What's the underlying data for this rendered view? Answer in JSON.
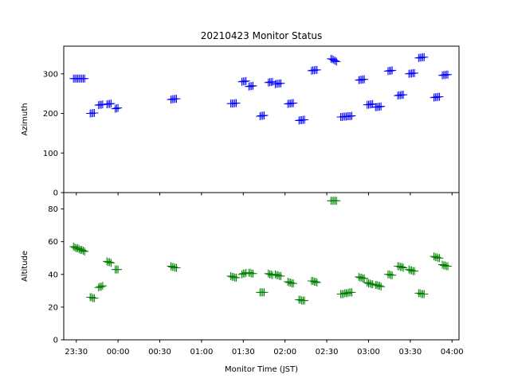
{
  "chart_data": {
    "type": "scatter",
    "title": "20210423 Monitor Status",
    "xlabel": "Monitor Time (JST)",
    "x_ticks": [
      "23:30",
      "00:00",
      "00:30",
      "01:00",
      "01:30",
      "02:00",
      "02:30",
      "03:00",
      "03:30",
      "04:00"
    ],
    "xlim": [
      "23:21",
      "04:05"
    ],
    "marker": "+",
    "panels": [
      {
        "ylabel": "Azimuth",
        "ylim": [
          0,
          370
        ],
        "y_ticks": [
          0,
          100,
          200,
          300
        ],
        "color": "#0000ff",
        "series": [
          {
            "x": [
              "23:28",
              "23:29",
              "23:30",
              "23:31",
              "23:32",
              "23:33",
              "23:34",
              "23:35",
              "23:36"
            ],
            "y": [
              288,
              288,
              288,
              288,
              288,
              288,
              288,
              288,
              288
            ]
          },
          {
            "x": [
              "23:40",
              "23:41",
              "23:42",
              "23:43"
            ],
            "y": [
              200,
              200,
              201,
              201
            ]
          },
          {
            "x": [
              "23:46",
              "23:47",
              "23:48",
              "23:49"
            ],
            "y": [
              221,
              222,
              222,
              223
            ]
          },
          {
            "x": [
              "23:52",
              "23:53",
              "23:54",
              "23:55"
            ],
            "y": [
              223,
              224,
              224,
              225
            ]
          },
          {
            "x": [
              "23:58",
              "23:59",
              "00:00"
            ],
            "y": [
              212,
              213,
              214
            ]
          },
          {
            "x": [
              "00:38",
              "00:39",
              "00:40",
              "00:41",
              "00:42"
            ],
            "y": [
              235,
              236,
              236,
              237,
              237
            ]
          },
          {
            "x": [
              "01:21",
              "01:22",
              "01:23",
              "01:24",
              "01:25"
            ],
            "y": [
              225,
              225,
              225,
              226,
              226
            ]
          },
          {
            "x": [
              "01:29",
              "01:30",
              "01:31",
              "01:32"
            ],
            "y": [
              280,
              281,
              281,
              282
            ]
          },
          {
            "x": [
              "01:34",
              "01:35",
              "01:36",
              "01:37"
            ],
            "y": [
              268,
              269,
              269,
              270
            ]
          },
          {
            "x": [
              "01:42",
              "01:43",
              "01:44",
              "01:45"
            ],
            "y": [
              193,
              194,
              194,
              195
            ]
          },
          {
            "x": [
              "01:48",
              "01:49",
              "01:50",
              "01:51"
            ],
            "y": [
              278,
              279,
              279,
              280
            ]
          },
          {
            "x": [
              "01:53",
              "01:54",
              "01:55",
              "01:56",
              "01:57"
            ],
            "y": [
              274,
              275,
              275,
              276,
              276
            ]
          },
          {
            "x": [
              "02:02",
              "02:03",
              "02:04",
              "02:05",
              "02:06"
            ],
            "y": [
              224,
              225,
              225,
              226,
              226
            ]
          },
          {
            "x": [
              "02:10",
              "02:11",
              "02:12",
              "02:13",
              "02:14"
            ],
            "y": [
              182,
              183,
              183,
              184,
              184
            ]
          },
          {
            "x": [
              "02:19",
              "02:20",
              "02:21",
              "02:22",
              "02:23"
            ],
            "y": [
              308,
              309,
              309,
              310,
              310
            ]
          },
          {
            "x": [
              "02:33",
              "02:34",
              "02:35",
              "02:36",
              "02:37"
            ],
            "y": [
              338,
              337,
              335,
              333,
              331
            ]
          },
          {
            "x": [
              "02:40",
              "02:41",
              "02:42",
              "02:43",
              "02:44",
              "02:45",
              "02:46",
              "02:47",
              "02:48"
            ],
            "y": [
              191,
              191,
              192,
              192,
              192,
              193,
              193,
              193,
              194
            ]
          },
          {
            "x": [
              "02:53",
              "02:54",
              "02:55",
              "02:56",
              "02:57"
            ],
            "y": [
              284,
              285,
              285,
              286,
              286
            ]
          },
          {
            "x": [
              "02:59",
              "03:00",
              "03:01",
              "03:02",
              "03:03"
            ],
            "y": [
              222,
              222,
              223,
              223,
              224
            ]
          },
          {
            "x": [
              "03:05",
              "03:06",
              "03:07",
              "03:08",
              "03:09"
            ],
            "y": [
              216,
              216,
              217,
              217,
              218
            ]
          },
          {
            "x": [
              "03:14",
              "03:15",
              "03:16",
              "03:17"
            ],
            "y": [
              307,
              308,
              308,
              309
            ]
          },
          {
            "x": [
              "03:21",
              "03:22",
              "03:23",
              "03:24",
              "03:25"
            ],
            "y": [
              245,
              246,
              246,
              247,
              247
            ]
          },
          {
            "x": [
              "03:29",
              "03:30",
              "03:31",
              "03:32",
              "03:33"
            ],
            "y": [
              300,
              301,
              301,
              302,
              302
            ]
          },
          {
            "x": [
              "03:36",
              "03:37",
              "03:38",
              "03:39",
              "03:40"
            ],
            "y": [
              340,
              341,
              341,
              342,
              342
            ]
          },
          {
            "x": [
              "03:47",
              "03:48",
              "03:49",
              "03:50",
              "03:51"
            ],
            "y": [
              240,
              241,
              241,
              242,
              242
            ]
          },
          {
            "x": [
              "03:53",
              "03:54",
              "03:55",
              "03:56",
              "03:57"
            ],
            "y": [
              296,
              297,
              297,
              298,
              298
            ]
          }
        ]
      },
      {
        "ylabel": "Altitude",
        "ylim": [
          0,
          90
        ],
        "y_ticks": [
          0,
          20,
          40,
          60,
          80
        ],
        "color": "#008000",
        "series": [
          {
            "x": [
              "23:28",
              "23:29",
              "23:30",
              "23:31",
              "23:32",
              "23:33",
              "23:34",
              "23:35",
              "23:36"
            ],
            "y": [
              57,
              56.5,
              56,
              56,
              55.5,
              55,
              55,
              54.5,
              54
            ]
          },
          {
            "x": [
              "23:40",
              "23:41",
              "23:42",
              "23:43"
            ],
            "y": [
              26,
              26,
              25.5,
              25.5
            ]
          },
          {
            "x": [
              "23:46",
              "23:47",
              "23:48",
              "23:49"
            ],
            "y": [
              32,
              32.5,
              32.5,
              33
            ]
          },
          {
            "x": [
              "23:52",
              "23:53",
              "23:54",
              "23:55"
            ],
            "y": [
              48,
              47.5,
              47.5,
              47
            ]
          },
          {
            "x": [
              "23:58",
              "23:59",
              "00:00"
            ],
            "y": [
              43,
              43,
              43
            ]
          },
          {
            "x": [
              "00:38",
              "00:39",
              "00:40",
              "00:41",
              "00:42"
            ],
            "y": [
              45,
              44.5,
              44.5,
              44,
              44
            ]
          },
          {
            "x": [
              "01:21",
              "01:22",
              "01:23",
              "01:24",
              "01:25"
            ],
            "y": [
              39,
              38.5,
              38.5,
              38,
              38
            ]
          },
          {
            "x": [
              "01:29",
              "01:30",
              "01:31",
              "01:32"
            ],
            "y": [
              40,
              40.5,
              40.5,
              41
            ]
          },
          {
            "x": [
              "01:34",
              "01:35",
              "01:36",
              "01:37"
            ],
            "y": [
              41,
              41,
              40.5,
              40.5
            ]
          },
          {
            "x": [
              "01:42",
              "01:43",
              "01:44",
              "01:45"
            ],
            "y": [
              29,
              29,
              29,
              29
            ]
          },
          {
            "x": [
              "01:48",
              "01:49",
              "01:50",
              "01:51"
            ],
            "y": [
              40.5,
              40,
              40,
              39.5
            ]
          },
          {
            "x": [
              "01:53",
              "01:54",
              "01:55",
              "01:56",
              "01:57"
            ],
            "y": [
              40,
              39.5,
              39.5,
              39,
              39
            ]
          },
          {
            "x": [
              "02:02",
              "02:03",
              "02:04",
              "02:05",
              "02:06"
            ],
            "y": [
              35.5,
              35,
              35,
              34.5,
              34.5
            ]
          },
          {
            "x": [
              "02:10",
              "02:11",
              "02:12",
              "02:13",
              "02:14"
            ],
            "y": [
              24.5,
              24.5,
              24,
              24,
              24
            ]
          },
          {
            "x": [
              "02:19",
              "02:20",
              "02:21",
              "02:22",
              "02:23"
            ],
            "y": [
              36,
              36,
              35.5,
              35.5,
              35
            ]
          },
          {
            "x": [
              "02:33",
              "02:34",
              "02:35",
              "02:36",
              "02:37"
            ],
            "y": [
              85,
              85,
              85,
              85,
              85
            ]
          },
          {
            "x": [
              "02:40",
              "02:41",
              "02:42",
              "02:43",
              "02:44",
              "02:45",
              "02:46",
              "02:47",
              "02:48"
            ],
            "y": [
              28,
              28,
              28,
              28.5,
              28.5,
              28.5,
              29,
              29,
              29
            ]
          },
          {
            "x": [
              "02:53",
              "02:54",
              "02:55",
              "02:56",
              "02:57"
            ],
            "y": [
              38.5,
              38,
              38,
              37.5,
              37.5
            ]
          },
          {
            "x": [
              "02:59",
              "03:00",
              "03:01",
              "03:02",
              "03:03"
            ],
            "y": [
              35,
              34.5,
              34.5,
              34,
              34
            ]
          },
          {
            "x": [
              "03:05",
              "03:06",
              "03:07",
              "03:08",
              "03:09"
            ],
            "y": [
              33.5,
              33.5,
              33,
              33,
              32.5
            ]
          },
          {
            "x": [
              "03:14",
              "03:15",
              "03:16",
              "03:17"
            ],
            "y": [
              40,
              40,
              39.5,
              39.5
            ]
          },
          {
            "x": [
              "03:21",
              "03:22",
              "03:23",
              "03:24",
              "03:25"
            ],
            "y": [
              45,
              45,
              44.5,
              44.5,
              44
            ]
          },
          {
            "x": [
              "03:29",
              "03:30",
              "03:31",
              "03:32",
              "03:33"
            ],
            "y": [
              43,
              42.5,
              42.5,
              42,
              42
            ]
          },
          {
            "x": [
              "03:36",
              "03:37",
              "03:38",
              "03:39",
              "03:40"
            ],
            "y": [
              28.5,
              28.5,
              28,
              28,
              28
            ]
          },
          {
            "x": [
              "03:47",
              "03:48",
              "03:49",
              "03:50",
              "03:51"
            ],
            "y": [
              51,
              50.5,
              50.5,
              50,
              50
            ]
          },
          {
            "x": [
              "03:53",
              "03:54",
              "03:55",
              "03:56",
              "03:57"
            ],
            "y": [
              46,
              45.5,
              45.5,
              45,
              45
            ]
          }
        ]
      }
    ]
  }
}
